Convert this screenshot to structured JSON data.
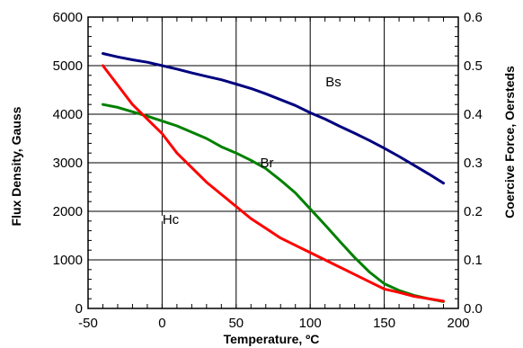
{
  "chart_data": {
    "type": "line",
    "title": "",
    "xlabel": "Temperature, ºC",
    "ylabel_left": "Flux Density, Gauss",
    "ylabel_right": "Coercive Force, Oersteds",
    "xlim": [
      -50,
      200
    ],
    "ylim_left": [
      0,
      6000
    ],
    "ylim_right": [
      0,
      0.6
    ],
    "x_ticks": [
      "-50",
      "0",
      "50",
      "100",
      "150",
      "200"
    ],
    "y_left_ticks": [
      "0",
      "1000",
      "2000",
      "3000",
      "4000",
      "5000",
      "6000"
    ],
    "y_right_ticks": [
      "0.0",
      "0.1",
      "0.2",
      "0.3",
      "0.4",
      "0.5",
      "0.6"
    ],
    "grid": true,
    "legend": "none",
    "series": [
      {
        "name": "Bs",
        "axis": "left",
        "color": "#00007f",
        "x": [
          -40,
          -30,
          -20,
          -10,
          0,
          10,
          20,
          30,
          40,
          50,
          60,
          70,
          80,
          90,
          100,
          110,
          120,
          130,
          140,
          150,
          160,
          170,
          180,
          190
        ],
        "y": [
          5250,
          5180,
          5120,
          5070,
          5000,
          4930,
          4850,
          4780,
          4710,
          4620,
          4530,
          4420,
          4300,
          4180,
          4030,
          3900,
          3750,
          3610,
          3460,
          3300,
          3130,
          2950,
          2770,
          2580
        ]
      },
      {
        "name": "Br",
        "axis": "left",
        "color": "#008000",
        "x": [
          -40,
          -30,
          -20,
          -10,
          0,
          10,
          20,
          30,
          40,
          50,
          60,
          70,
          80,
          90,
          100,
          110,
          120,
          130,
          140,
          150,
          160,
          170,
          180,
          190
        ],
        "y": [
          4200,
          4140,
          4050,
          3960,
          3860,
          3760,
          3630,
          3500,
          3330,
          3200,
          3050,
          2880,
          2640,
          2380,
          2050,
          1720,
          1380,
          1050,
          750,
          510,
          370,
          270,
          200,
          140
        ]
      },
      {
        "name": "Hc",
        "axis": "right",
        "color": "#ff0000",
        "x": [
          -40,
          -30,
          -20,
          -10,
          0,
          10,
          20,
          30,
          40,
          50,
          60,
          70,
          80,
          90,
          100,
          110,
          120,
          130,
          140,
          150,
          160,
          170,
          180,
          190
        ],
        "y": [
          0.5,
          0.46,
          0.42,
          0.39,
          0.36,
          0.32,
          0.29,
          0.26,
          0.235,
          0.21,
          0.185,
          0.165,
          0.145,
          0.13,
          0.115,
          0.1,
          0.085,
          0.07,
          0.055,
          0.04,
          0.033,
          0.025,
          0.02,
          0.015
        ]
      }
    ]
  }
}
